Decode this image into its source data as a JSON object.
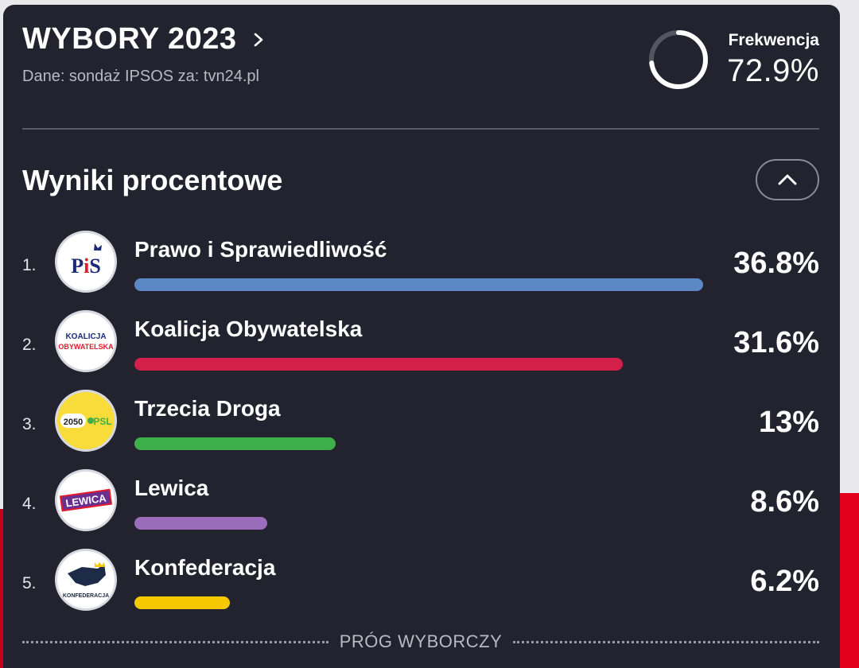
{
  "header": {
    "title": "WYBORY 2023",
    "subtitle": "Dane: sondaż IPSOS za: tvn24.pl"
  },
  "turnout": {
    "label": "Frekwencja",
    "value_text": "72.9%",
    "value": 72.9
  },
  "section": {
    "title": "Wyniki procentowe"
  },
  "results": [
    {
      "rank": "1.",
      "name": "Prawo i Sprawiedliwość",
      "pct_text": "36.8%",
      "pct": 36.8,
      "color": "#5b87c5",
      "logo": "pis-logo",
      "logo_text": "PiS"
    },
    {
      "rank": "2.",
      "name": "Koalicja Obywatelska",
      "pct_text": "31.6%",
      "pct": 31.6,
      "color": "#d2204a",
      "logo": "ko-logo",
      "logo_text": "KOALICJA OBYWATELSKA"
    },
    {
      "rank": "3.",
      "name": "Trzecia Droga",
      "pct_text": "13%",
      "pct": 13,
      "color": "#3eae4a",
      "logo": "trzecia-droga-logo",
      "logo_text": "2050 PSL"
    },
    {
      "rank": "4.",
      "name": "Lewica",
      "pct_text": "8.6%",
      "pct": 8.6,
      "color": "#9a6cb9",
      "logo": "lewica-logo",
      "logo_text": "LEWICA"
    },
    {
      "rank": "5.",
      "name": "Konfederacja",
      "pct_text": "6.2%",
      "pct": 6.2,
      "color": "#f5c800",
      "logo": "konfederacja-logo",
      "logo_text": "KONFEDERACJA"
    }
  ],
  "threshold": {
    "label": "PRÓG WYBORCZY"
  },
  "colors": {
    "card_bg": "#23232f",
    "accent_red": "#e3001b"
  }
}
